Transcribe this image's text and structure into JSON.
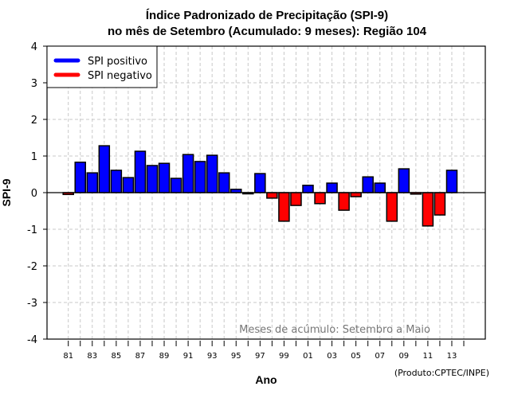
{
  "chart_data": {
    "type": "bar",
    "title": "Índice Padronizado de Precipitação (SPI-9)",
    "subtitle": "no mês de Setembro (Acumulado: 9 meses): Região 104",
    "xlabel": "Ano",
    "ylabel": "SPI-9",
    "ylim": [
      -4,
      4
    ],
    "yticks": [
      "4",
      "3",
      "2",
      "1",
      "0",
      "-1",
      "-2",
      "-3",
      "-4"
    ],
    "ytick_values": [
      4,
      3,
      2,
      1,
      0,
      -1,
      -2,
      -3,
      -4
    ],
    "grid": true,
    "categories": [
      "81",
      "82",
      "83",
      "84",
      "85",
      "86",
      "87",
      "88",
      "89",
      "90",
      "91",
      "92",
      "93",
      "94",
      "95",
      "96",
      "97",
      "98",
      "99",
      "00",
      "01",
      "02",
      "03",
      "04",
      "05",
      "06",
      "07",
      "08",
      "09",
      "10",
      "11",
      "12",
      "13"
    ],
    "xtick_labels": [
      "81",
      "83",
      "85",
      "87",
      "89",
      "91",
      "93",
      "95",
      "97",
      "99",
      "01",
      "03",
      "05",
      "07",
      "09",
      "11",
      "13"
    ],
    "values": [
      -0.05,
      0.83,
      0.54,
      1.28,
      0.61,
      0.41,
      1.13,
      0.74,
      0.8,
      0.39,
      1.04,
      0.85,
      1.02,
      0.54,
      0.09,
      -0.03,
      0.52,
      -0.15,
      -0.78,
      -0.35,
      0.2,
      -0.3,
      0.26,
      -0.48,
      -0.11,
      0.43,
      0.26,
      -0.78,
      0.65,
      -0.04,
      -0.91,
      -0.61,
      0.61
    ],
    "legend": {
      "placement": "top-left",
      "entries": [
        {
          "label": "SPI positivo",
          "color": "#0000ff"
        },
        {
          "label": "SPI negativo",
          "color": "#ff0000"
        }
      ]
    },
    "annotation": "Meses de acúmulo: Setembro a Maio",
    "credit": "(Produto:CPTEC/INPE)",
    "colors": {
      "positive": "#0000ff",
      "negative": "#ff0000",
      "border": "#000000"
    }
  }
}
